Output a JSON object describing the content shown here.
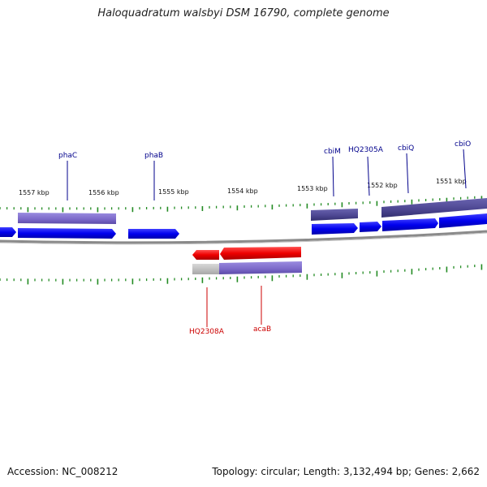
{
  "title": "Haloquadratum walsbyi DSM 16790, complete genome",
  "footer": {
    "accession": "Accession: NC_008212",
    "summary": "Topology: circular; Length: 3,132,494 bp; Genes: 2,662"
  },
  "colors": {
    "backbone": "#888888",
    "tick": "#228b22",
    "forward_gene": "#0000ee",
    "reverse_gene": "#ee0000",
    "label_forward": "#00008b",
    "label_reverse": "#cc0000",
    "feature_light": "#7b68c8",
    "feature_dark": "#4b4590",
    "feature_grey": "#bbbbbb"
  },
  "scale_labels": [
    {
      "text": "1557 kbp",
      "kbp": 1557
    },
    {
      "text": "1556 kbp",
      "kbp": 1556
    },
    {
      "text": "1555 kbp",
      "kbp": 1555
    },
    {
      "text": "1554 kbp",
      "kbp": 1554
    },
    {
      "text": "1553 kbp",
      "kbp": 1553
    },
    {
      "text": "1552 kbp",
      "kbp": 1552
    },
    {
      "text": "1551 kbp",
      "kbp": 1551
    }
  ],
  "gene_labels": [
    {
      "text": "phaC",
      "strand": "forward"
    },
    {
      "text": "phaB",
      "strand": "forward"
    },
    {
      "text": "cbiM",
      "strand": "forward"
    },
    {
      "text": "HQ2305A",
      "strand": "forward"
    },
    {
      "text": "cbiQ",
      "strand": "forward"
    },
    {
      "text": "cbiO",
      "strand": "forward"
    },
    {
      "text": "HQ2308A",
      "strand": "reverse"
    },
    {
      "text": "acaB",
      "strand": "reverse"
    }
  ]
}
